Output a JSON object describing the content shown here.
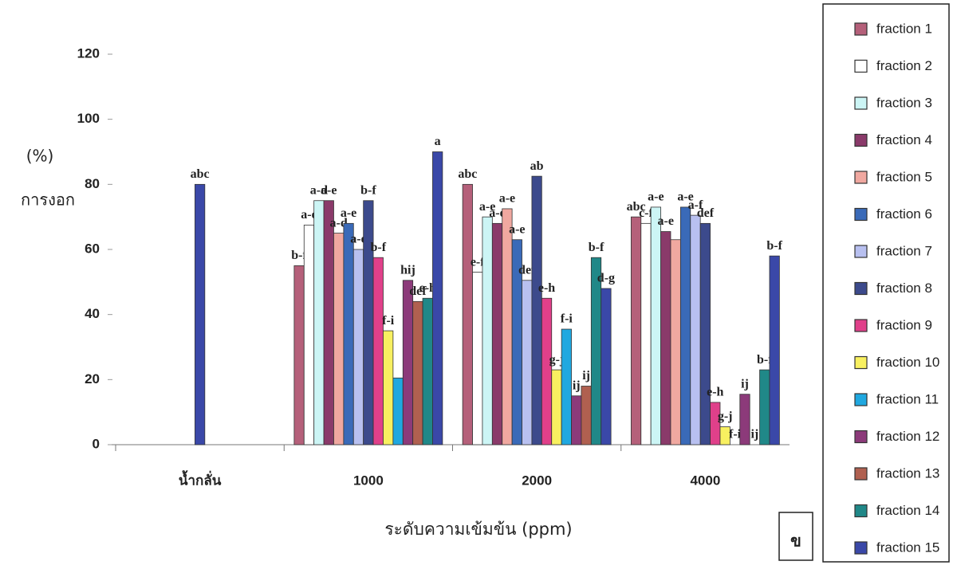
{
  "chart_data": {
    "type": "bar",
    "y_label_unit": "(%)",
    "y_label": "การงอก",
    "x_label": "ระดับความเข้มข้น (ppm)",
    "corner_note": "ข",
    "categories": [
      "น้ำกลั่น",
      "1000",
      "2000",
      "4000"
    ],
    "ylim": [
      0,
      120
    ],
    "yticks": [
      0,
      20,
      40,
      60,
      80,
      100,
      120
    ],
    "series": [
      {
        "name": "fraction 1",
        "color": "#b5607a",
        "values": [
          null,
          55,
          80,
          70
        ],
        "letters": [
          null,
          "b-f",
          "abc",
          "abc"
        ]
      },
      {
        "name": "fraction 2",
        "color": "#ffffff",
        "values": [
          null,
          67.5,
          53,
          68
        ],
        "letters": [
          null,
          "a-e",
          "e-f",
          "c-f"
        ]
      },
      {
        "name": "fraction 3",
        "color": "#ccf5f5",
        "values": [
          null,
          75,
          70,
          73
        ],
        "letters": [
          null,
          "a-d",
          "a-e",
          "a-e"
        ]
      },
      {
        "name": "fraction 4",
        "color": "#8a3a6a",
        "values": [
          null,
          75,
          68,
          65.5
        ],
        "letters": [
          null,
          "a-e",
          "a-e",
          "a-e"
        ]
      },
      {
        "name": "fraction 5",
        "color": "#f0a8a0",
        "values": [
          null,
          65,
          72.5,
          63
        ],
        "letters": [
          null,
          "a-d",
          "a-e",
          null
        ]
      },
      {
        "name": "fraction 6",
        "color": "#3a6ab8",
        "values": [
          null,
          68,
          63,
          73
        ],
        "letters": [
          null,
          "a-e",
          "a-e",
          "a-e"
        ]
      },
      {
        "name": "fraction 7",
        "color": "#b8c0f0",
        "values": [
          null,
          60,
          50.5,
          70.5
        ],
        "letters": [
          null,
          "a-e",
          "def",
          "a-f"
        ]
      },
      {
        "name": "fraction 8",
        "color": "#3c4a8c",
        "values": [
          null,
          75,
          82.5,
          68
        ],
        "letters": [
          null,
          "b-f",
          "ab",
          "def"
        ]
      },
      {
        "name": "fraction 9",
        "color": "#e0408a",
        "values": [
          null,
          57.5,
          45,
          13
        ],
        "letters": [
          null,
          "b-f",
          "e-h",
          "e-h"
        ]
      },
      {
        "name": "fraction 10",
        "color": "#f8f060",
        "values": [
          null,
          35,
          23,
          5.5
        ],
        "letters": [
          null,
          "f-i",
          "g-j",
          "g-j"
        ]
      },
      {
        "name": "fraction 11",
        "color": "#20a8e0",
        "values": [
          null,
          20.5,
          35.5,
          0
        ],
        "letters": [
          null,
          null,
          "f-i",
          "f-i"
        ]
      },
      {
        "name": "fraction 12",
        "color": "#8c3a7a",
        "values": [
          null,
          50.5,
          15,
          15.5
        ],
        "letters": [
          null,
          "hij",
          "ij",
          "ij"
        ]
      },
      {
        "name": "fraction 13",
        "color": "#b06050",
        "values": [
          null,
          44,
          18,
          0
        ],
        "letters": [
          null,
          "def",
          "ij",
          "ij"
        ]
      },
      {
        "name": "fraction 14",
        "color": "#208888",
        "values": [
          null,
          45,
          57.5,
          23
        ],
        "letters": [
          null,
          "e-h",
          "b-f",
          "b-f"
        ]
      },
      {
        "name": "fraction 15",
        "color": "#3a48a8",
        "values": [
          80,
          90,
          48,
          58
        ],
        "letters": [
          "abc",
          "a",
          "d-g",
          "b-f"
        ]
      }
    ]
  }
}
